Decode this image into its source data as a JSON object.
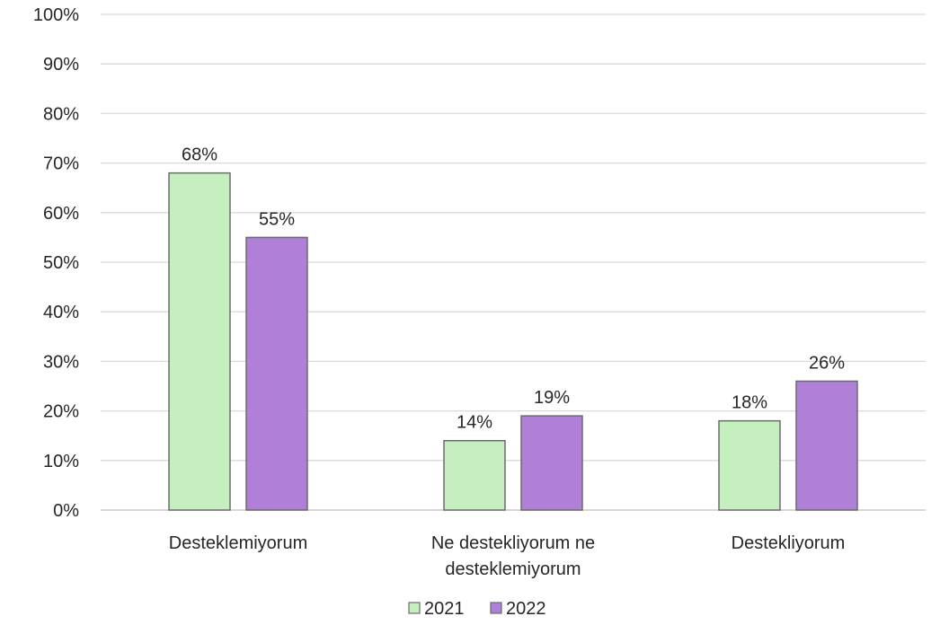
{
  "chart_data": {
    "type": "bar",
    "categories": [
      [
        "Desteklemiyorum"
      ],
      [
        "Ne destekliyorum ne",
        "desteklemiyorum"
      ],
      [
        "Destekliyorum"
      ]
    ],
    "series": [
      {
        "name": "2021",
        "values": [
          68,
          14,
          18
        ],
        "labels": [
          "68%",
          "14%",
          "18%"
        ],
        "color": "#c6efc0"
      },
      {
        "name": "2022",
        "values": [
          55,
          19,
          26
        ],
        "labels": [
          "55%",
          "19%",
          "26%"
        ],
        "color": "#b07fd8"
      }
    ],
    "y_ticks": [
      "0%",
      "10%",
      "20%",
      "30%",
      "40%",
      "50%",
      "60%",
      "70%",
      "80%",
      "90%",
      "100%"
    ],
    "ylim": [
      0,
      100
    ],
    "grid": true,
    "legend": "bottom",
    "colors": {
      "bar_border": "#6b6b6b",
      "grid": "#d9d9d9",
      "text": "#262626"
    }
  }
}
